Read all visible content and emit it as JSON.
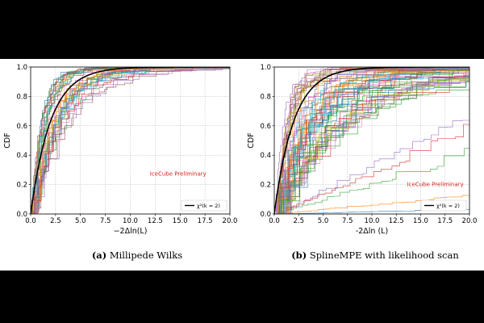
{
  "chart_data": [
    {
      "type": "line",
      "panel": "a",
      "caption_label": "(a)",
      "caption_text": "Millipede Wilks",
      "xlabel": "−2Δln(L)",
      "ylabel": "CDF",
      "xlim": [
        0,
        20
      ],
      "ylim": [
        0,
        1
      ],
      "x_ticks": [
        "0.0",
        "2.5",
        "5.0",
        "7.5",
        "10.0",
        "12.5",
        "15.0",
        "17.5",
        "20.0"
      ],
      "y_ticks": [
        "0.0",
        "0.2",
        "0.4",
        "0.6",
        "0.8",
        "1.0"
      ],
      "grid": true,
      "legend": {
        "position": "bottom-right",
        "entries": [
          "χ²(k = 2)"
        ]
      },
      "annotation": {
        "text": "IceCube Preliminary",
        "color": "#e02020"
      },
      "series": [
        {
          "name": "χ²(k = 2)",
          "type": "chi2",
          "k": 2,
          "color": "#000000"
        }
      ],
      "trial_curves": {
        "count": 35,
        "scale_min": 0.9,
        "scale_max": 3.6,
        "tail_max": 0.12
      }
    },
    {
      "type": "line",
      "panel": "b",
      "caption_label": "(b)",
      "caption_text": "SplineMPE with likelihood scan",
      "xlabel": "-2Δln (L)",
      "ylabel": "CDF",
      "xlim": [
        0,
        20
      ],
      "ylim": [
        0,
        1
      ],
      "x_ticks": [
        "0.0",
        "2.5",
        "5.0",
        "7.5",
        "10.0",
        "12.5",
        "15.0",
        "17.5",
        "20.0"
      ],
      "y_ticks": [
        "0.0",
        "0.2",
        "0.4",
        "0.6",
        "0.8",
        "1.0"
      ],
      "grid": true,
      "legend": {
        "position": "bottom-right",
        "entries": [
          "χ²(k = 2)"
        ]
      },
      "annotation": {
        "text": "IceCube Preliminary",
        "color": "#e02020"
      },
      "series": [
        {
          "name": "χ²(k = 2)",
          "type": "chi2",
          "k": 2,
          "color": "#000000"
        }
      ],
      "trial_curves": {
        "count": 70,
        "scale_min": 0.8,
        "scale_max": 7.0,
        "tail_max": 0.25,
        "slow": [
          0.03,
          0.12,
          0.4,
          0.55,
          0.62
        ]
      }
    }
  ],
  "colors": [
    "#1f77b4",
    "#ff7f0e",
    "#2ca02c",
    "#d62728",
    "#9467bd",
    "#8c564b",
    "#e377c2",
    "#7f7f7f",
    "#bcbd22",
    "#17becf"
  ]
}
